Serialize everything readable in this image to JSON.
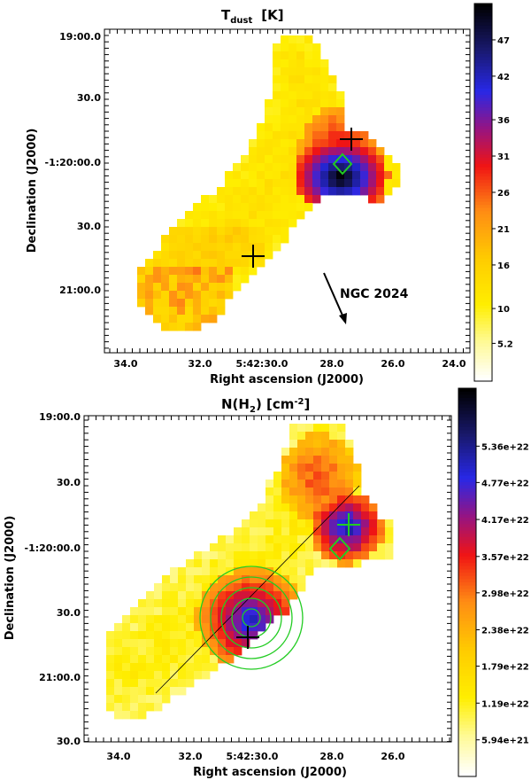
{
  "panels": [
    {
      "id": "tdust",
      "title_main": "T",
      "title_sub": "dust",
      "title_unit": "[K]",
      "xlabel": "Right ascension (J2000)",
      "ylabel": "Declination (J2000)",
      "xticks": [
        "34.0",
        "32.0",
        "5:42:30.0",
        "28.0",
        "26.0",
        "24.0"
      ],
      "yticks": [
        "19:00.0",
        "30.0",
        "-1:20:00.0",
        "30.0",
        "21:00.0"
      ],
      "annotation": "NGC 2024",
      "colorbar": {
        "ticks": [
          "47",
          "42",
          "36",
          "31",
          "26",
          "21",
          "16",
          "10",
          "5.2"
        ],
        "min": 0,
        "max": 52
      }
    },
    {
      "id": "nh2",
      "title_main": "N(H",
      "title_sub": "2",
      "title_unit": ") [cm",
      "title_sup": "-2",
      "title_end": "]",
      "xlabel": "Right ascension (J2000)",
      "ylabel": "Declination (J2000)",
      "xticks": [
        "34.0",
        "32.0",
        "5:42:30.0",
        "28.0",
        "26.0"
      ],
      "yticks": [
        "19:00.0",
        "30.0",
        "-1:20:00.0",
        "30.0",
        "21:00.0",
        "30.0"
      ],
      "colorbar": {
        "ticks": [
          "5.36e+22",
          "4.77e+22",
          "4.17e+22",
          "3.57e+22",
          "2.98e+22",
          "2.38e+22",
          "1.79e+22",
          "1.19e+22",
          "5.94e+21"
        ],
        "min": 0,
        "max": 6.3e+22
      }
    }
  ],
  "chart_data": [
    {
      "type": "heatmap",
      "title": "T_dust [K]",
      "xlabel": "Right ascension (J2000)",
      "ylabel": "Declination (J2000)",
      "x_ticks": [
        "34.0",
        "32.0",
        "5:42:30.0",
        "28.0",
        "26.0",
        "24.0"
      ],
      "y_ticks": [
        "19:00.0",
        "30.0",
        "-1:20:00.0",
        "30.0",
        "21:00.0"
      ],
      "colorbar_label": "T_dust [K]",
      "colorbar_ticks": [
        47,
        42,
        36,
        31,
        26,
        21,
        16,
        10,
        5.2
      ],
      "colorbar_range": [
        0,
        52
      ],
      "markers": [
        {
          "kind": "plus",
          "color": "#000000",
          "ra": "5:42:27.6",
          "dec": "-1:19:50"
        },
        {
          "kind": "diamond",
          "color": "#22cc22",
          "ra": "5:42:28.0",
          "dec": "-1:20:02"
        },
        {
          "kind": "plus",
          "color": "#000000",
          "ra": "5:42:30.1",
          "dec": "-1:20:45"
        }
      ],
      "annotation": {
        "text": "NGC 2024",
        "arrow": "pointing south-east"
      }
    },
    {
      "type": "heatmap",
      "title": "N(H2) [cm-2]",
      "xlabel": "Right ascension (J2000)",
      "ylabel": "Declination (J2000)",
      "x_ticks": [
        "34.0",
        "32.0",
        "5:42:30.0",
        "28.0",
        "26.0"
      ],
      "y_ticks": [
        "19:00.0",
        "30.0",
        "-1:20:00.0",
        "30.0",
        "21:00.0",
        "30.0"
      ],
      "colorbar_label": "N(H2) [cm-2]",
      "colorbar_ticks": [
        5.36e+22,
        4.77e+22,
        4.17e+22,
        3.57e+22,
        2.98e+22,
        2.38e+22,
        1.79e+22,
        1.19e+22,
        5.94e+21
      ],
      "colorbar_range": [
        0,
        6.3e+22
      ],
      "markers": [
        {
          "kind": "plus",
          "color": "#22cc22",
          "ra": "5:42:27.5",
          "dec": "-1:19:50"
        },
        {
          "kind": "diamond",
          "color": "#22cc22",
          "ra": "5:42:27.9",
          "dec": "-1:20:02"
        },
        {
          "kind": "concentric-circles",
          "color": "#22cc22",
          "count": 5,
          "ra": "5:42:30.0",
          "dec": "-1:20:30"
        },
        {
          "kind": "plus",
          "color": "#000000",
          "ra": "5:42:30.2",
          "dec": "-1:20:38"
        }
      ],
      "lines": [
        {
          "kind": "cut",
          "from": {
            "ra": "5:42:33.0",
            "dec": "-1:21:08"
          },
          "to": {
            "ra": "5:42:27.4",
            "dec": "-1:19:34"
          }
        }
      ]
    }
  ]
}
